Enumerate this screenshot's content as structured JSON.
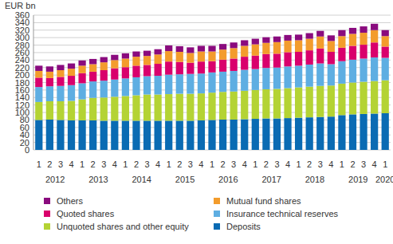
{
  "chart_data": {
    "type": "bar",
    "stacked": true,
    "grid": true,
    "legend": "bottom",
    "y_label": "EUR bn",
    "categories": [
      "1",
      "2",
      "3",
      "4",
      "1",
      "2",
      "3",
      "4",
      "1",
      "2",
      "3",
      "4",
      "1",
      "2",
      "3",
      "4",
      "1",
      "2",
      "3",
      "4",
      "1",
      "2",
      "3",
      "4",
      "1",
      "2",
      "3",
      "4",
      "1",
      "2",
      "3",
      "4",
      "1"
    ],
    "groups": [
      {
        "label": "2012",
        "size": 4
      },
      {
        "label": "2013",
        "size": 4
      },
      {
        "label": "2014",
        "size": 4
      },
      {
        "label": "2015",
        "size": 4
      },
      {
        "label": "2016",
        "size": 4
      },
      {
        "label": "2017",
        "size": 4
      },
      {
        "label": "2018",
        "size": 4
      },
      {
        "label": "2019",
        "size": 4
      },
      {
        "label": "2020",
        "size": 1
      }
    ],
    "ylim": [
      0,
      360
    ],
    "yticks": [
      0,
      20,
      40,
      60,
      80,
      100,
      120,
      140,
      160,
      180,
      200,
      220,
      240,
      260,
      280,
      300,
      320,
      340,
      360
    ],
    "series": [
      {
        "name": "Deposits",
        "color": "#0a6bb3",
        "values": [
          80,
          81,
          80,
          79,
          79,
          79,
          78,
          78,
          78,
          78,
          78,
          78,
          78,
          78,
          78,
          79,
          80,
          81,
          81,
          82,
          83,
          84,
          84,
          85,
          86,
          87,
          88,
          89,
          93,
          95,
          96,
          97,
          98
        ]
      },
      {
        "name": "Unquoted shares and other equity",
        "color": "#b4d334",
        "values": [
          48,
          49,
          50,
          52,
          56,
          60,
          62,
          64,
          66,
          68,
          70,
          70,
          71,
          72,
          72,
          72,
          73,
          74,
          75,
          76,
          77,
          78,
          79,
          80,
          81,
          82,
          83,
          83,
          84,
          85,
          86,
          87,
          88
        ]
      },
      {
        "name": "Insurance technical reserves",
        "color": "#5eaee2",
        "values": [
          40,
          40,
          41,
          42,
          43,
          44,
          45,
          46,
          47,
          48,
          49,
          50,
          52,
          52,
          53,
          53,
          54,
          54,
          55,
          56,
          56,
          57,
          57,
          58,
          58,
          59,
          60,
          57,
          60,
          61,
          62,
          63,
          60
        ]
      },
      {
        "name": "Quoted shares",
        "color": "#d9006c",
        "values": [
          25,
          22,
          24,
          25,
          27,
          26,
          28,
          30,
          30,
          31,
          30,
          32,
          35,
          33,
          30,
          32,
          30,
          32,
          33,
          35,
          36,
          37,
          37,
          38,
          37,
          38,
          40,
          33,
          36,
          37,
          37,
          40,
          30
        ]
      },
      {
        "name": "Mutual fund shares",
        "color": "#f39c2c",
        "values": [
          18,
          17,
          18,
          19,
          20,
          20,
          21,
          22,
          23,
          24,
          24,
          25,
          28,
          27,
          26,
          27,
          26,
          27,
          28,
          29,
          30,
          30,
          31,
          31,
          31,
          31,
          32,
          29,
          31,
          32,
          32,
          33,
          28
        ]
      },
      {
        "name": "Others",
        "color": "#8a0b7e",
        "values": [
          14,
          14,
          14,
          14,
          14,
          14,
          14,
          14,
          14,
          14,
          14,
          14,
          15,
          15,
          15,
          15,
          15,
          15,
          15,
          15,
          15,
          15,
          15,
          15,
          15,
          15,
          15,
          15,
          16,
          16,
          17,
          17,
          16
        ]
      }
    ]
  }
}
